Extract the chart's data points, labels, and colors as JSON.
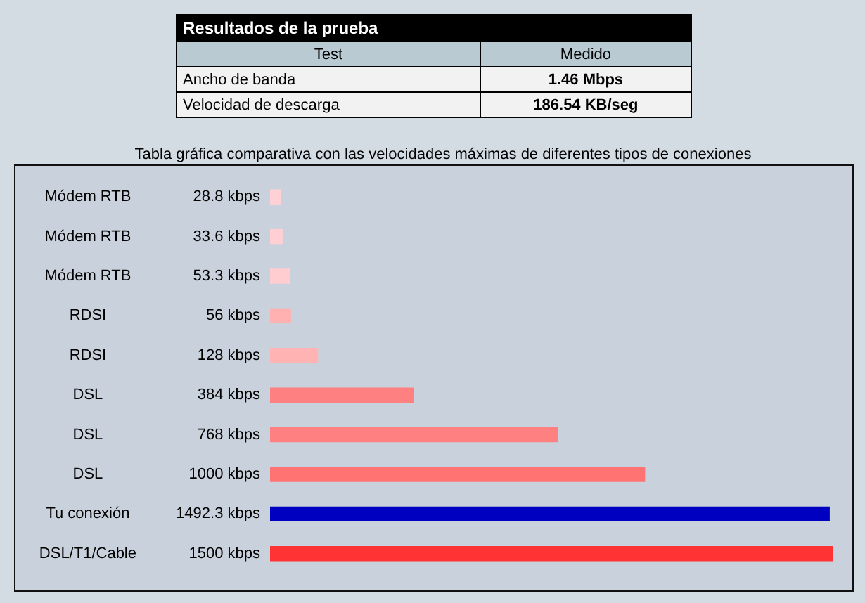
{
  "chart_data": [
    {
      "type": "other",
      "title": "Resultados de la prueba",
      "annotations": [
        "Test",
        "Medido",
        "Ancho de banda",
        "1.46 Mbps",
        "Velocidad de descarga",
        "186.54 KB/seg"
      ]
    },
    {
      "type": "bar",
      "orientation": "horizontal",
      "title": "Tabla gráfica comparativa con las velocidades máximas de diferentes tipos de conexiones",
      "categories": [
        "Módem RTB",
        "Módem RTB",
        "Módem RTB",
        "RDSI",
        "RDSI",
        "DSL",
        "DSL",
        "DSL",
        "Tu conexión",
        "DSL/T1/Cable"
      ],
      "values": [
        28.8,
        33.6,
        53.3,
        56,
        128,
        384,
        768,
        1000,
        1492.3,
        1500
      ],
      "value_labels": [
        "28.8 kbps",
        "33.6 kbps",
        "53.3 kbps",
        "56 kbps",
        "128 kbps",
        "384 kbps",
        "768 kbps",
        "1000 kbps",
        "1492.3 kbps",
        "1500 kbps"
      ],
      "colors": [
        "#ffd0d5",
        "#ffcfd4",
        "#ffcccf",
        "#ffb0b0",
        "#ffb3b3",
        "#ff8080",
        "#ff8080",
        "#ff7373",
        "#0000c0",
        "#ff3333"
      ]
    }
  ]
}
